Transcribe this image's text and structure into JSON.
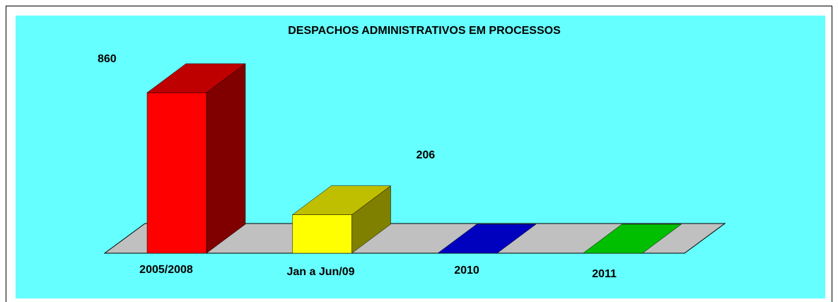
{
  "chart_data": {
    "type": "bar3d",
    "title": "DESPACHOS ADMINISTRATIVOS EM PROCESSOS",
    "categories": [
      "2005/2008",
      "Jan a Jun/09",
      "2010",
      "2011"
    ],
    "values": [
      860,
      206,
      0,
      0
    ],
    "value_labels": [
      "860",
      "206",
      null,
      null
    ],
    "colors": [
      "#ff0000",
      "#ffff00",
      "#0000ff",
      "#00ff00"
    ]
  }
}
